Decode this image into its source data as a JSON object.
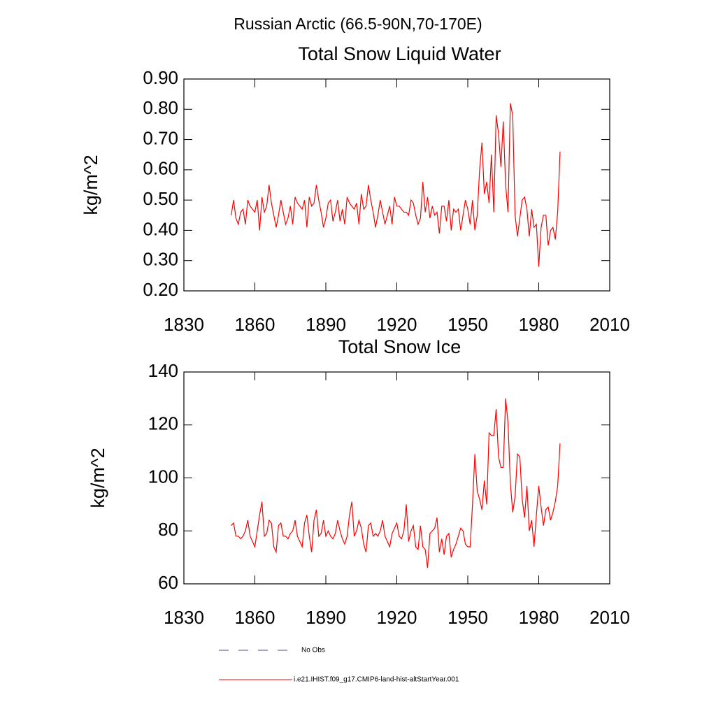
{
  "title": "Russian Arctic (66.5-90N,70-170E)",
  "legend": [
    {
      "name": "No Obs",
      "color": "#4b4b8c",
      "dash": true
    }
  ],
  "chart_data": [
    {
      "type": "line",
      "title": "Total Snow Liquid Water",
      "y_label": "kg/m^2",
      "x": [
        1850,
        1851,
        1852,
        1853,
        1854,
        1855,
        1856,
        1857,
        1858,
        1859,
        1860,
        1861,
        1862,
        1863,
        1864,
        1865,
        1866,
        1867,
        1868,
        1869,
        1870,
        1871,
        1872,
        1873,
        1874,
        1875,
        1876,
        1877,
        1878,
        1879,
        1880,
        1881,
        1882,
        1883,
        1884,
        1885,
        1886,
        1887,
        1888,
        1889,
        1890,
        1891,
        1892,
        1893,
        1894,
        1895,
        1896,
        1897,
        1898,
        1899,
        1900,
        1901,
        1902,
        1903,
        1904,
        1905,
        1906,
        1907,
        1908,
        1909,
        1910,
        1911,
        1912,
        1913,
        1914,
        1915,
        1916,
        1917,
        1918,
        1919,
        1920,
        1921,
        1922,
        1923,
        1924,
        1925,
        1926,
        1927,
        1928,
        1929,
        1930,
        1931,
        1932,
        1933,
        1934,
        1935,
        1936,
        1937,
        1938,
        1939,
        1940,
        1941,
        1942,
        1943,
        1944,
        1945,
        1946,
        1947,
        1948,
        1949,
        1950,
        1951,
        1952,
        1953,
        1954,
        1955,
        1956,
        1957,
        1958,
        1959,
        1960,
        1961,
        1962,
        1963,
        1964,
        1965,
        1966,
        1967,
        1968,
        1969,
        1970,
        1971,
        1972,
        1973,
        1974,
        1975,
        1976,
        1977,
        1978,
        1979,
        1980,
        1981,
        1982,
        1983,
        1984,
        1985,
        1986,
        1987,
        1988,
        1989
      ],
      "series": [
        {
          "name": "i.e21.IHIST.f09_g17.CMIP6-land-hist-altStartYear.001",
          "color": "#ff0000",
          "values": [
            0.45,
            0.5,
            0.44,
            0.42,
            0.46,
            0.47,
            0.42,
            0.5,
            0.48,
            0.47,
            0.46,
            0.5,
            0.4,
            0.51,
            0.46,
            0.48,
            0.55,
            0.49,
            0.45,
            0.41,
            0.45,
            0.5,
            0.46,
            0.42,
            0.44,
            0.48,
            0.42,
            0.51,
            0.49,
            0.48,
            0.47,
            0.5,
            0.41,
            0.51,
            0.48,
            0.49,
            0.55,
            0.5,
            0.46,
            0.41,
            0.44,
            0.49,
            0.5,
            0.43,
            0.46,
            0.5,
            0.43,
            0.47,
            0.42,
            0.51,
            0.49,
            0.48,
            0.47,
            0.49,
            0.42,
            0.52,
            0.47,
            0.48,
            0.55,
            0.5,
            0.46,
            0.41,
            0.45,
            0.5,
            0.46,
            0.42,
            0.45,
            0.48,
            0.42,
            0.51,
            0.48,
            0.48,
            0.47,
            0.46,
            0.46,
            0.45,
            0.5,
            0.49,
            0.45,
            0.42,
            0.44,
            0.56,
            0.46,
            0.51,
            0.44,
            0.48,
            0.45,
            0.46,
            0.39,
            0.48,
            0.48,
            0.43,
            0.5,
            0.4,
            0.47,
            0.46,
            0.47,
            0.4,
            0.45,
            0.5,
            0.47,
            0.42,
            0.5,
            0.4,
            0.45,
            0.6,
            0.69,
            0.52,
            0.56,
            0.49,
            0.65,
            0.46,
            0.78,
            0.72,
            0.61,
            0.76,
            0.55,
            0.46,
            0.82,
            0.78,
            0.45,
            0.38,
            0.44,
            0.5,
            0.51,
            0.47,
            0.38,
            0.47,
            0.41,
            0.42,
            0.28,
            0.41,
            0.45,
            0.45,
            0.35,
            0.4,
            0.41,
            0.37,
            0.46,
            0.66
          ]
        }
      ],
      "xlim": [
        1830,
        2010
      ],
      "xticks": [
        1830,
        1860,
        1890,
        1920,
        1950,
        1980,
        2010
      ],
      "ylim": [
        0.2,
        0.9
      ],
      "yticks": [
        {
          "value": 0.2,
          "label": "0.20"
        },
        {
          "value": 0.3,
          "label": "0.30"
        },
        {
          "value": 0.4,
          "label": "0.40"
        },
        {
          "value": 0.5,
          "label": "0.50"
        },
        {
          "value": 0.6,
          "label": "0.60"
        },
        {
          "value": 0.7,
          "label": "0.70"
        },
        {
          "value": 0.8,
          "label": "0.80"
        },
        {
          "value": 0.9,
          "label": "0.90"
        }
      ]
    },
    {
      "type": "line",
      "title": "Total Snow Ice",
      "y_label": "kg/m^2",
      "x": [
        1850,
        1851,
        1852,
        1853,
        1854,
        1855,
        1856,
        1857,
        1858,
        1859,
        1860,
        1861,
        1862,
        1863,
        1864,
        1865,
        1866,
        1867,
        1868,
        1869,
        1870,
        1871,
        1872,
        1873,
        1874,
        1875,
        1876,
        1877,
        1878,
        1879,
        1880,
        1881,
        1882,
        1883,
        1884,
        1885,
        1886,
        1887,
        1888,
        1889,
        1890,
        1891,
        1892,
        1893,
        1894,
        1895,
        1896,
        1897,
        1898,
        1899,
        1900,
        1901,
        1902,
        1903,
        1904,
        1905,
        1906,
        1907,
        1908,
        1909,
        1910,
        1911,
        1912,
        1913,
        1914,
        1915,
        1916,
        1917,
        1918,
        1919,
        1920,
        1921,
        1922,
        1923,
        1924,
        1925,
        1926,
        1927,
        1928,
        1929,
        1930,
        1931,
        1932,
        1933,
        1934,
        1935,
        1936,
        1937,
        1938,
        1939,
        1940,
        1941,
        1942,
        1943,
        1944,
        1945,
        1946,
        1947,
        1948,
        1949,
        1950,
        1951,
        1952,
        1953,
        1954,
        1955,
        1956,
        1957,
        1958,
        1959,
        1960,
        1961,
        1962,
        1963,
        1964,
        1965,
        1966,
        1967,
        1968,
        1969,
        1970,
        1971,
        1972,
        1973,
        1974,
        1975,
        1976,
        1977,
        1978,
        1979,
        1980,
        1981,
        1982,
        1983,
        1984,
        1985,
        1986,
        1987,
        1988,
        1989
      ],
      "series": [
        {
          "name": "i.e21.IHIST.f09_g17.CMIP6-land-hist-altStartYear.001",
          "color": "#ff0000",
          "values": [
            82,
            83,
            78,
            78,
            77,
            78,
            80,
            84,
            78,
            76,
            74,
            80,
            86,
            91,
            78,
            79,
            84,
            83,
            74,
            72,
            82,
            83,
            78,
            78,
            77,
            79,
            80,
            84,
            78,
            76,
            74,
            83,
            86,
            78,
            72,
            84,
            88,
            78,
            79,
            84,
            78,
            80,
            78,
            77,
            79,
            84,
            80,
            77,
            75,
            78,
            86,
            91,
            78,
            80,
            84,
            81,
            75,
            72,
            82,
            83,
            78,
            79,
            78,
            80,
            84,
            78,
            76,
            74,
            79,
            81,
            83,
            78,
            77,
            80,
            90,
            76,
            80,
            82,
            74,
            73,
            82,
            74,
            73,
            66,
            79,
            80,
            81,
            85,
            72,
            77,
            71,
            78,
            79,
            70,
            73,
            75,
            78,
            81,
            80,
            75,
            74,
            74,
            90,
            109,
            95,
            92,
            88,
            99,
            90,
            117,
            116,
            116,
            126,
            108,
            104,
            104,
            130,
            121,
            98,
            87,
            93,
            109,
            108,
            92,
            85,
            97,
            80,
            84,
            74,
            86,
            97,
            89,
            82,
            88,
            89,
            84,
            87,
            91,
            97,
            113
          ]
        }
      ],
      "xlim": [
        1830,
        2010
      ],
      "xticks": [
        1830,
        1860,
        1890,
        1920,
        1950,
        1980,
        2010
      ],
      "ylim": [
        60,
        140
      ],
      "yticks": [
        60,
        80,
        100,
        120,
        140
      ]
    }
  ]
}
